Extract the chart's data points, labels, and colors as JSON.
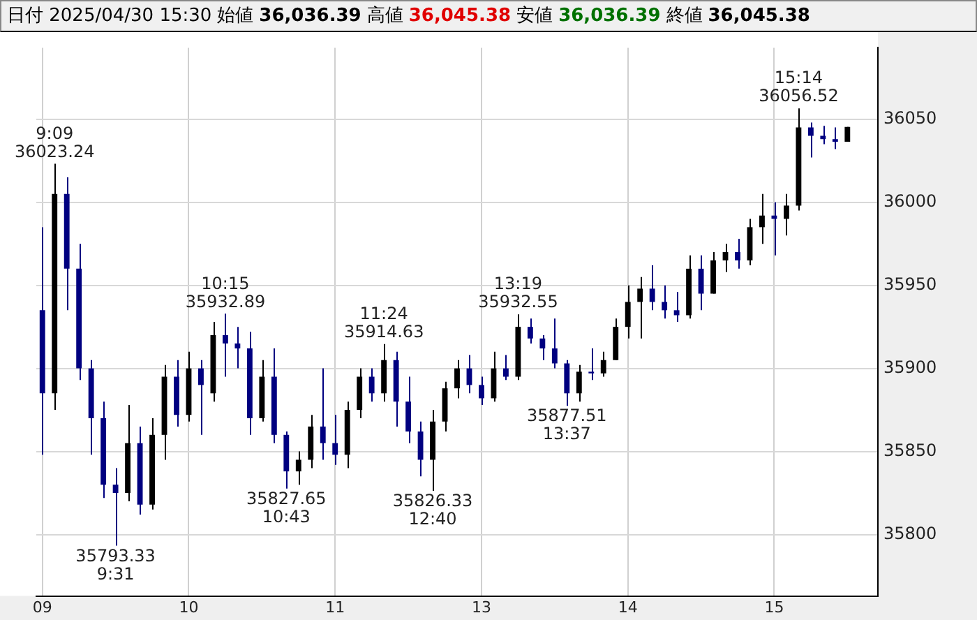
{
  "chart_data": {
    "type": "candlestick",
    "title": "日付 2025/04/30 15:30",
    "categories": [
      "09",
      null,
      null,
      null,
      null,
      null,
      null,
      null,
      null,
      null,
      null,
      null,
      "10",
      null,
      null,
      null,
      null,
      null,
      null,
      null,
      null,
      null,
      null,
      null,
      "11",
      null,
      null,
      null,
      null,
      null,
      null,
      null,
      null,
      null,
      null,
      null,
      "13",
      null,
      null,
      null,
      null,
      null,
      null,
      null,
      null,
      null,
      null,
      null,
      "14",
      null,
      null,
      null,
      null,
      null,
      null,
      null,
      null,
      null,
      null,
      null,
      "15",
      null,
      null,
      null,
      null,
      null,
      null,
      null,
      null
    ],
    "ohlc": [
      [
        35935,
        35985,
        35848,
        35885
      ],
      [
        35885,
        36023.24,
        35875,
        36005
      ],
      [
        36005,
        36015,
        35935,
        35960
      ],
      [
        35960,
        35975,
        35893,
        35900
      ],
      [
        35900,
        35905,
        35848,
        35870
      ],
      [
        35870,
        35880,
        35822,
        35830
      ],
      [
        35830,
        35840,
        35793.33,
        35825
      ],
      [
        35825,
        35878,
        35820,
        35855
      ],
      [
        35855,
        35865,
        35812,
        35818
      ],
      [
        35818,
        35870,
        35815,
        35860
      ],
      [
        35860,
        35902,
        35845,
        35895
      ],
      [
        35895,
        35905,
        35865,
        35872
      ],
      [
        35872,
        35910,
        35868,
        35900
      ],
      [
        35900,
        35905,
        35860,
        35890
      ],
      [
        35885,
        35928,
        35880,
        35920
      ],
      [
        35920,
        35932.89,
        35895,
        35915
      ],
      [
        35915,
        35925,
        35900,
        35912
      ],
      [
        35912,
        35922,
        35860,
        35870
      ],
      [
        35870,
        35905,
        35868,
        35895
      ],
      [
        35895,
        35912,
        35855,
        35860
      ],
      [
        35860,
        35862,
        35827.65,
        35838
      ],
      [
        35838,
        35850,
        35830,
        35845
      ],
      [
        35845,
        35872,
        35840,
        35865
      ],
      [
        35865,
        35900,
        35845,
        35855
      ],
      [
        35855,
        35872,
        35842,
        35848
      ],
      [
        35848,
        35880,
        35840,
        35875
      ],
      [
        35875,
        35900,
        35870,
        35895
      ],
      [
        35895,
        35900,
        35880,
        35885
      ],
      [
        35885,
        35914.63,
        35880,
        35905
      ],
      [
        35905,
        35910,
        35865,
        35880
      ],
      [
        35880,
        35895,
        35855,
        35862
      ],
      [
        35862,
        35868,
        35835,
        35845
      ],
      [
        35845,
        35875,
        35826.33,
        35868
      ],
      [
        35868,
        35892,
        35862,
        35888
      ],
      [
        35888,
        35905,
        35882,
        35900
      ],
      [
        35900,
        35908,
        35885,
        35890
      ],
      [
        35890,
        35895,
        35878,
        35882
      ],
      [
        35882,
        35910,
        35880,
        35900
      ],
      [
        35900,
        35908,
        35893,
        35895
      ],
      [
        35895,
        35932.55,
        35893,
        35925
      ],
      [
        35925,
        35930,
        35915,
        35918
      ],
      [
        35918,
        35920,
        35905,
        35912
      ],
      [
        35912,
        35930,
        35900,
        35903
      ],
      [
        35903,
        35905,
        35877.51,
        35885
      ],
      [
        35885,
        35902,
        35880,
        35898
      ],
      [
        35898,
        35912,
        35893,
        35897
      ],
      [
        35897,
        35910,
        35895,
        35905
      ],
      [
        35905,
        35930,
        35905,
        35925
      ],
      [
        35925,
        35950,
        35918,
        35940
      ],
      [
        35940,
        35955,
        35918,
        35948
      ],
      [
        35948,
        35962,
        35935,
        35940
      ],
      [
        35940,
        35950,
        35930,
        35935
      ],
      [
        35935,
        35946,
        35928,
        35932
      ],
      [
        35932,
        35968,
        35930,
        35960
      ],
      [
        35960,
        35968,
        35935,
        35945
      ],
      [
        35945,
        35970,
        35945,
        35965
      ],
      [
        35965,
        35975,
        35958,
        35970
      ],
      [
        35970,
        35978,
        35960,
        35965
      ],
      [
        35965,
        35990,
        35962,
        35985
      ],
      [
        35985,
        36005,
        35975,
        35992
      ],
      [
        35992,
        36000,
        35968,
        35990
      ],
      [
        35990,
        36005,
        35980,
        35998
      ],
      [
        35998,
        36056.52,
        35995,
        36045
      ],
      [
        36045,
        36048,
        36027,
        36040
      ],
      [
        36040,
        36046,
        36035,
        36038
      ],
      [
        36038,
        36045,
        36032,
        36036.39
      ],
      [
        36036.39,
        36045.38,
        36036.39,
        36045.38
      ],
      null,
      null
    ],
    "colors": [
      "#000080",
      "#000000",
      "#000080",
      "#000080",
      "#000080",
      "#000080",
      "#000080",
      "#000000",
      "#000080",
      "#000000",
      "#000000",
      "#000080",
      "#000000",
      "#000080",
      "#000000",
      "#000080",
      "#000080",
      "#000080",
      "#000000",
      "#000080",
      "#000080",
      "#000000",
      "#000000",
      "#000080",
      "#000080",
      "#000000",
      "#000000",
      "#000080",
      "#000000",
      "#000080",
      "#000080",
      "#000080",
      "#000000",
      "#000000",
      "#000000",
      "#000080",
      "#000080",
      "#000000",
      "#000080",
      "#000000",
      "#000080",
      "#000080",
      "#000080",
      "#000080",
      "#000000",
      "#000080",
      "#000000",
      "#000000",
      "#000000",
      "#000000",
      "#000080",
      "#000080",
      "#000080",
      "#000000",
      "#000080",
      "#000000",
      "#000000",
      "#000080",
      "#000000",
      "#000000",
      "#000080",
      "#000000",
      "#000000",
      "#000080",
      "#000080",
      "#000080",
      "#000000",
      null,
      null
    ],
    "ylim": [
      35763,
      36093
    ],
    "yticks": [
      35800,
      35850,
      35900,
      35950,
      36000,
      36050
    ],
    "grid": true,
    "annotations": [
      "始値 36,036.39",
      "高値 36,045.38",
      "安値 36,036.39",
      "終値 36,045.38",
      {
        "text": "9:09\n36023.24",
        "y": 36023.24
      },
      {
        "text": "35793.33\n9:31",
        "y": 35793.33
      },
      {
        "text": "10:15\n35932.89",
        "y": 35932.89
      },
      {
        "text": "35827.65\n10:43",
        "y": 35827.65
      },
      {
        "text": "11:24\n35914.63",
        "y": 35914.63
      },
      {
        "text": "35826.33\n12:40",
        "y": 35826.33
      },
      {
        "text": "13:19\n35932.55",
        "y": 35932.55
      },
      {
        "text": "35877.51\n13:37",
        "y": 35877.51
      },
      {
        "text": "15:14\n36056.52",
        "y": 36056.52
      }
    ]
  }
}
